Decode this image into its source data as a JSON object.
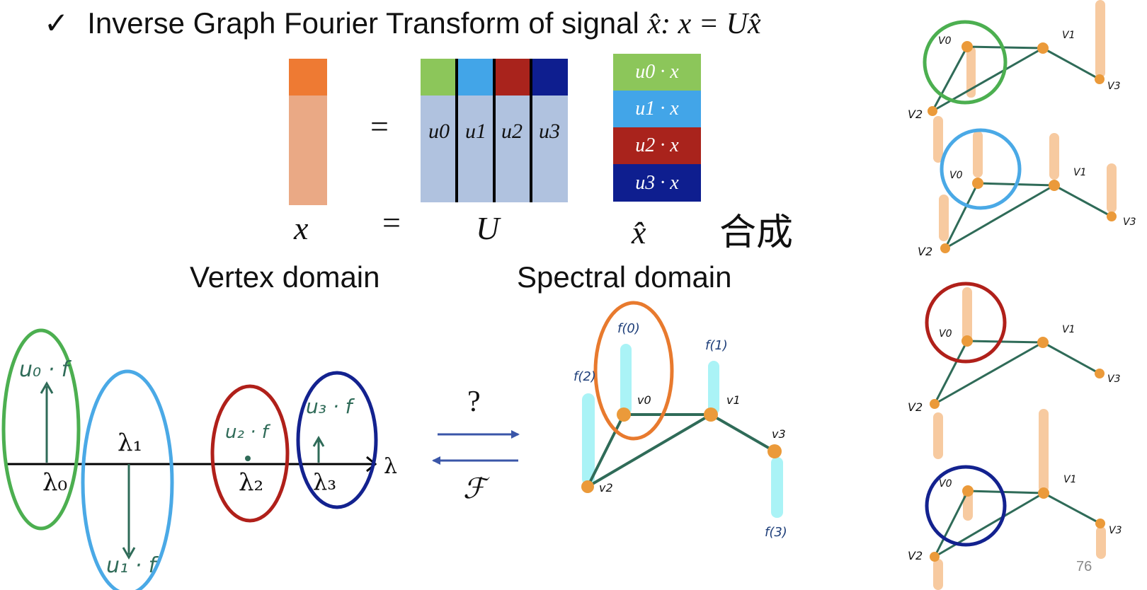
{
  "title": {
    "check": "✓",
    "text": "Inverse Graph Fourier Transform of signal ",
    "math": "x̂: x = Ux̂"
  },
  "matrix_eq": {
    "equals": "=",
    "col_labels": [
      "u0",
      "u1",
      "u2",
      "u3"
    ],
    "coef_labels": [
      "u0 · x",
      "u1 · x",
      "u2 · x",
      "u3 · x"
    ],
    "label_x": "x",
    "label_eq": "=",
    "label_U": "U",
    "label_xhat": "x̂",
    "synth": "合成",
    "vertex_domain": "Vertex domain",
    "spectral_domain": "Spectral domain"
  },
  "colors": {
    "green": "#8cc65a",
    "light_blue": "#42a5e8",
    "red": "#a9231c",
    "navy": "#0e1e8f",
    "matrix_bg": "#b0c2df",
    "x_top": "#ee7a33",
    "x_body": "#eaa985",
    "edge": "#2f6b58",
    "node": "#eb9a3a",
    "bar_peach": "#f7caa0",
    "bar_cyan": "#aaf3f6"
  },
  "spectrum": {
    "labels": [
      "u₀ · f",
      "λ₁",
      "u₂ · f",
      "u₃ · f",
      "λ₀",
      "λ₂",
      "λ₃",
      "λ",
      "u₁ · f"
    ]
  },
  "arrows": {
    "question": "?",
    "fourier": "ℱ"
  },
  "center_graph": {
    "f_labels": [
      "f(0)",
      "f(1)",
      "f(2)",
      "f(3)"
    ],
    "node_labels": [
      "v0",
      "v1",
      "v2",
      "v3"
    ]
  },
  "side_graphs": {
    "node_labels": [
      "V0",
      "V1",
      "V2",
      "V3"
    ]
  },
  "page_number": "76"
}
